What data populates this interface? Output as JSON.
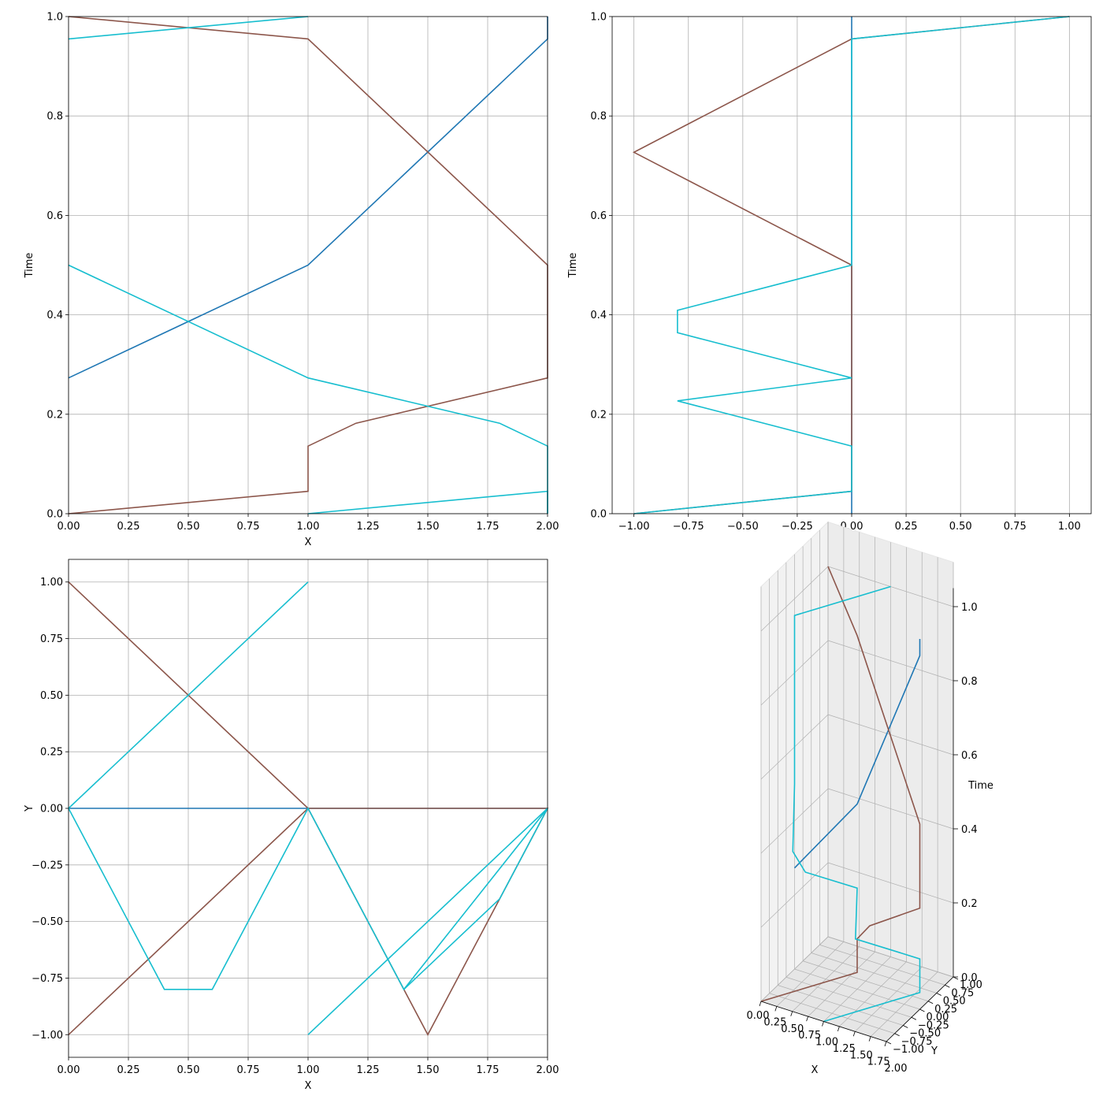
{
  "colors": {
    "blue": "#1f77b4",
    "brown": "#8c564b",
    "cyan": "#17becf",
    "grid": "#b0b0b0"
  },
  "chart_data": [
    {
      "id": "xt",
      "type": "line",
      "xlabel": "X",
      "ylabel": "Time",
      "xlim": [
        0,
        2
      ],
      "ylim": [
        0,
        1
      ],
      "grid": true,
      "xticks": [
        0,
        0.25,
        0.5,
        0.75,
        1.0,
        1.25,
        1.5,
        1.75,
        2.0
      ],
      "xtick_labels": [
        "0.00",
        "0.25",
        "0.50",
        "0.75",
        "1.00",
        "1.25",
        "1.50",
        "1.75",
        "2.00"
      ],
      "yticks": [
        0,
        0.2,
        0.4,
        0.6,
        0.8,
        1.0
      ],
      "ytick_labels": [
        "0.0",
        "0.2",
        "0.4",
        "0.6",
        "0.8",
        "1.0"
      ],
      "series": [
        {
          "color": "blue",
          "x": [
            0,
            1.0,
            2.0,
            2.0
          ],
          "y": [
            0.273,
            0.5,
            0.955,
            1.0
          ]
        },
        {
          "color": "brown",
          "x": [
            0,
            1.0,
            1.0,
            1.2,
            2.0,
            2.0,
            1.0,
            0
          ],
          "y": [
            0,
            0.045,
            0.136,
            0.182,
            0.273,
            0.5,
            0.955,
            1.0
          ]
        },
        {
          "color": "cyan",
          "x": [
            0,
            1.0,
            1.8,
            2.0,
            2.0
          ],
          "y": [
            0.5,
            0.273,
            0.182,
            0.136,
            0.0
          ]
        },
        {
          "color": "cyan",
          "x": [
            1.0,
            2.0,
            2.0
          ],
          "y": [
            0,
            0.045,
            0.0
          ]
        },
        {
          "color": "cyan",
          "x": [
            0,
            1.0
          ],
          "y": [
            0.955,
            1.0
          ]
        }
      ]
    },
    {
      "id": "yt",
      "type": "line",
      "xlabel": "Y",
      "ylabel": "Time",
      "xlim": [
        -1.1,
        1.1
      ],
      "ylim": [
        0,
        1
      ],
      "grid": true,
      "xticks": [
        -1.0,
        -0.75,
        -0.5,
        -0.25,
        0,
        0.25,
        0.5,
        0.75,
        1.0
      ],
      "xtick_labels": [
        "−1.00",
        "−0.75",
        "−0.50",
        "−0.25",
        "0.00",
        "0.25",
        "0.50",
        "0.75",
        "1.00"
      ],
      "yticks": [
        0,
        0.2,
        0.4,
        0.6,
        0.8,
        1.0
      ],
      "ytick_labels": [
        "0.0",
        "0.2",
        "0.4",
        "0.6",
        "0.8",
        "1.0"
      ],
      "series": [
        {
          "color": "blue",
          "x": [
            0,
            0
          ],
          "y": [
            0,
            1.0
          ]
        },
        {
          "color": "brown",
          "x": [
            -1.0,
            0,
            0,
            0,
            -1.0,
            0,
            1.0
          ],
          "y": [
            0,
            0.045,
            0.136,
            0.5,
            0.727,
            0.955,
            1.0
          ]
        },
        {
          "color": "cyan",
          "x": [
            -1.0,
            0,
            0,
            -0.8,
            0,
            -0.8,
            -0.8,
            0,
            0,
            0,
            1.0
          ],
          "y": [
            0,
            0.045,
            0.136,
            0.227,
            0.273,
            0.364,
            0.409,
            0.5,
            0.6,
            0.955,
            1.0
          ]
        }
      ]
    },
    {
      "id": "xy",
      "type": "line",
      "xlabel": "X",
      "ylabel": "Y",
      "xlim": [
        0,
        2
      ],
      "ylim": [
        -1.1,
        1.1
      ],
      "grid": true,
      "xticks": [
        0,
        0.25,
        0.5,
        0.75,
        1.0,
        1.25,
        1.5,
        1.75,
        2.0
      ],
      "xtick_labels": [
        "0.00",
        "0.25",
        "0.50",
        "0.75",
        "1.00",
        "1.25",
        "1.50",
        "1.75",
        "2.00"
      ],
      "yticks": [
        -1.0,
        -0.75,
        -0.5,
        -0.25,
        0,
        0.25,
        0.5,
        0.75,
        1.0
      ],
      "ytick_labels": [
        "−1.00",
        "−0.75",
        "−0.50",
        "−0.25",
        "0.00",
        "0.25",
        "0.50",
        "0.75",
        "1.00"
      ],
      "series": [
        {
          "color": "blue",
          "x": [
            0,
            1.0,
            2.0
          ],
          "y": [
            0,
            0,
            0
          ]
        },
        {
          "color": "brown",
          "x": [
            0,
            1.0,
            1.5,
            2.0,
            1.0,
            0
          ],
          "y": [
            -1.0,
            0,
            -1.0,
            0,
            0,
            1.0
          ]
        },
        {
          "color": "cyan",
          "x": [
            0,
            1.0
          ],
          "y": [
            0,
            1.0
          ]
        },
        {
          "color": "cyan",
          "x": [
            0,
            0.4,
            0.6,
            1.0,
            1.4,
            2.0
          ],
          "y": [
            0,
            -0.8,
            -0.8,
            0,
            -0.8,
            0
          ]
        },
        {
          "color": "cyan",
          "x": [
            1.0,
            2.0,
            1.8,
            1.4
          ],
          "y": [
            -1.0,
            0,
            -0.4,
            -0.8
          ]
        }
      ]
    },
    {
      "id": "3d",
      "type": "line",
      "xlabel": "X",
      "ylabel": "Y",
      "zlabel": "Time",
      "xtick_labels": [
        "0.00",
        "0.25",
        "0.50",
        "0.75",
        "1.00",
        "1.25",
        "1.50",
        "1.75",
        "2.00"
      ],
      "ytick_labels": [
        "−1.00",
        "−0.75",
        "−0.50",
        "−0.25",
        "0.00",
        "0.25",
        "0.50",
        "0.75",
        "1.00"
      ],
      "ztick_labels": [
        "0.0",
        "0.2",
        "0.4",
        "0.6",
        "0.8",
        "1.0"
      ]
    }
  ]
}
